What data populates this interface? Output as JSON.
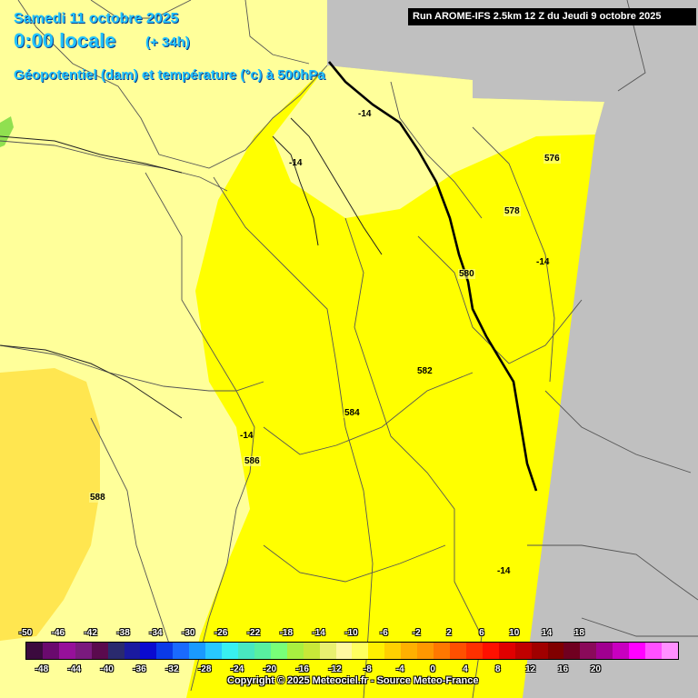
{
  "header": {
    "date": "Samedi 11 octobre 2025",
    "time": "0:00 locale",
    "offset": "(+ 34h)",
    "parameter": "Géopotentiel (dam) et température (°c) à 500hPa",
    "run": "Run AROME-IFS 2.5km 12 Z du Jeudi 9 octobre 2025"
  },
  "map_labels": {
    "geopotential": [
      "576",
      "578",
      "580",
      "582",
      "584",
      "586",
      "588"
    ],
    "temperature": [
      "-14",
      "-14",
      "-14",
      "-14",
      "-14"
    ]
  },
  "legend": {
    "top_labels": [
      "-50",
      "-46",
      "-42",
      "-38",
      "-34",
      "-30",
      "-26",
      "-22",
      "-18",
      "-14",
      "-10",
      "-6",
      "-2",
      "2",
      "6",
      "10",
      "14",
      "18"
    ],
    "bottom_labels": [
      "-48",
      "-44",
      "-40",
      "-36",
      "-32",
      "-28",
      "-24",
      "-20",
      "-16",
      "-12",
      "-8",
      "-4",
      "0",
      "4",
      "8",
      "12",
      "16",
      "20"
    ],
    "colors": [
      "#3b0a3e",
      "#6a0a6e",
      "#96109a",
      "#7a1a7e",
      "#5a0a4e",
      "#2a2a6e",
      "#1a1aa0",
      "#0a0ad0",
      "#0a3ae8",
      "#1a6aff",
      "#1a9aff",
      "#28c8ff",
      "#38f0f0",
      "#48e8c0",
      "#58f0a0",
      "#78ff78",
      "#a8f040",
      "#c8e838",
      "#e8f070",
      "#fff8a0",
      "#ffff60",
      "#fff000",
      "#ffd000",
      "#ffb000",
      "#ff9800",
      "#ff7800",
      "#ff5000",
      "#ff3000",
      "#ff1000",
      "#e00000",
      "#c00000",
      "#a00000",
      "#800000",
      "#700020",
      "#8a0a5a",
      "#a00090",
      "#c800c0",
      "#ff00ff",
      "#ff50ff",
      "#ff90ff"
    ]
  },
  "colors": {
    "band_588": "#ffe650",
    "band_586": "#ffff9a",
    "band_584": "#ffff66",
    "band_582": "#ffff00",
    "out_of_domain": "#c0c0c0",
    "isohypse": "#000000"
  },
  "copyright": "Copyright © 2025 Meteociel.fr - Source Meteo-France"
}
